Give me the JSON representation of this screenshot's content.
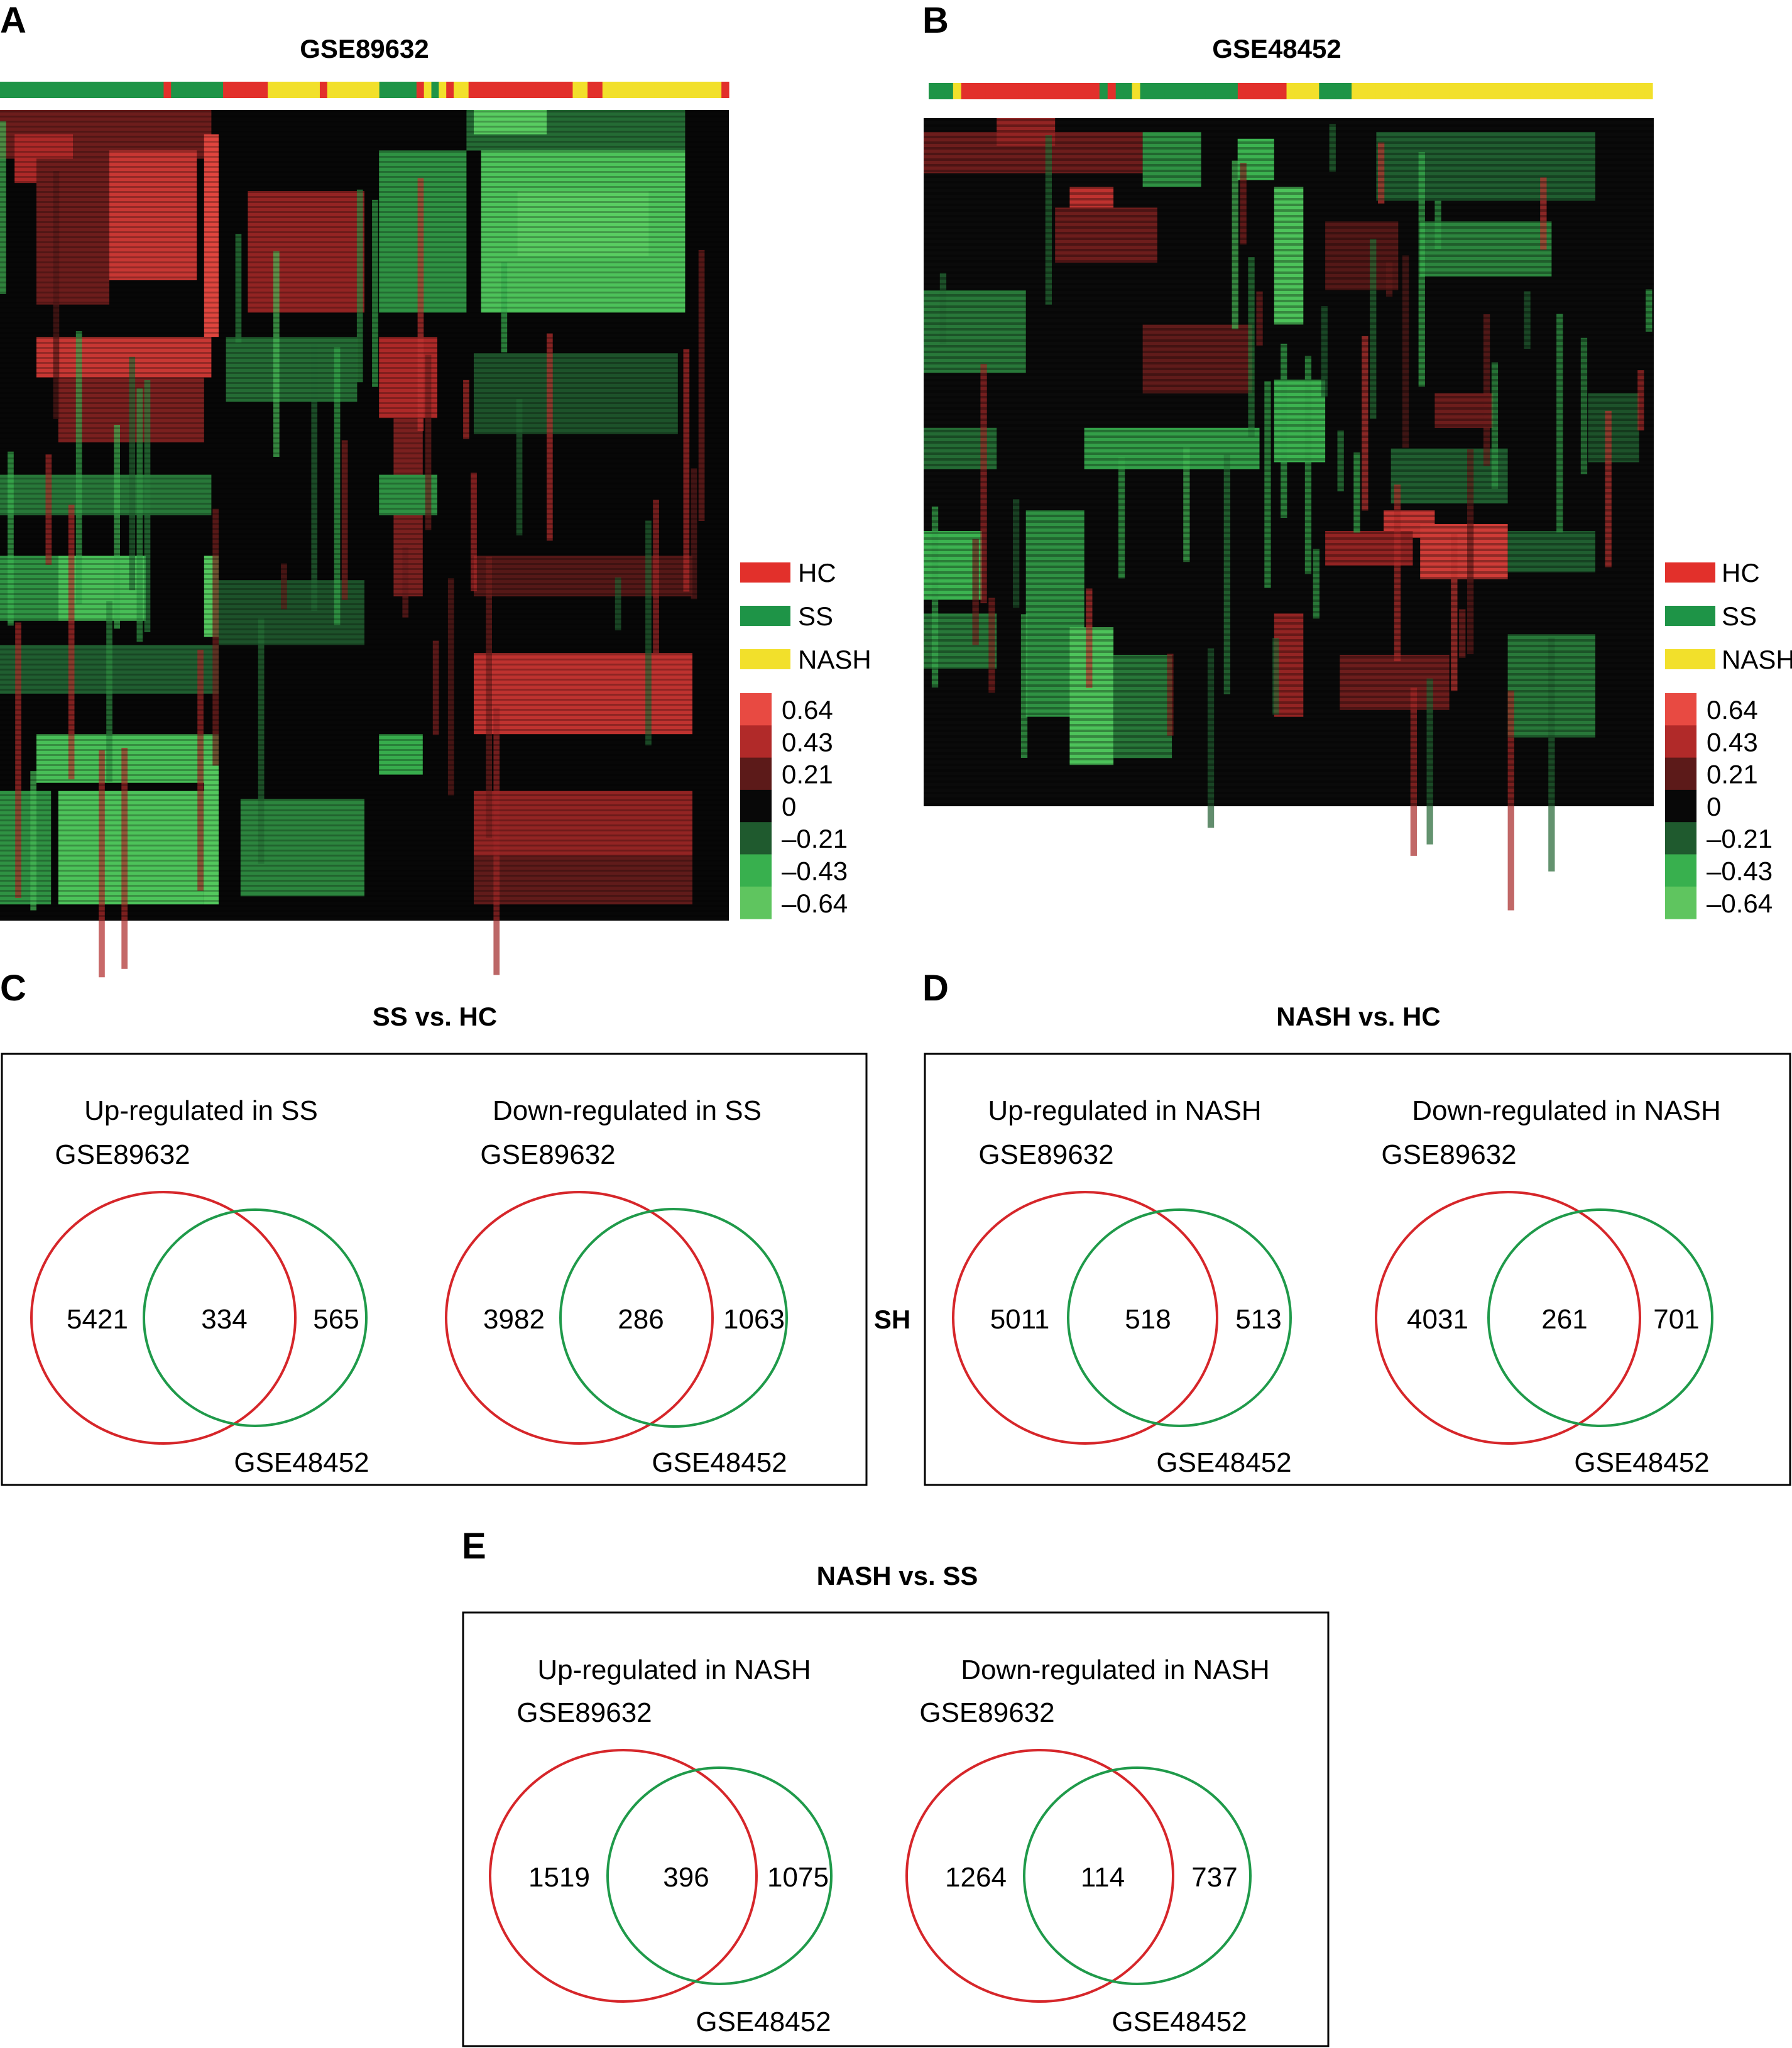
{
  "colors": {
    "hc": "#e2302b",
    "ss": "#1e9447",
    "nash": "#f2e02b",
    "venn_red": "#d6262a",
    "venn_green": "#1f9a4a",
    "scale": [
      "#e84a42",
      "#b12a29",
      "#5c1a19",
      "#080808",
      "#1f5a2e",
      "#38b04e",
      "#5fc55f"
    ]
  },
  "heatmaps": [
    {
      "letter": "A",
      "title": "GSE89632",
      "sample_groups": [
        "SS",
        "SS",
        "SS",
        "SS",
        "SS",
        "SS",
        "SS",
        "SS",
        "SS",
        "SS",
        "SS",
        "SS",
        "SS",
        "SS",
        "SS",
        "SS",
        "SS",
        "SS",
        "SS",
        "SS",
        "SS",
        "SS",
        "HC",
        "SS",
        "SS",
        "SS",
        "SS",
        "SS",
        "SS",
        "SS",
        "HC",
        "HC",
        "HC",
        "HC",
        "HC",
        "HC",
        "NASH",
        "NASH",
        "NASH",
        "NASH",
        "NASH",
        "NASH",
        "NASH",
        "HC",
        "NASH",
        "NASH",
        "NASH",
        "NASH",
        "NASH",
        "NASH",
        "NASH",
        "SS",
        "SS",
        "SS",
        "SS",
        "SS",
        "HC",
        "NASH",
        "SS",
        "NASH",
        "HC",
        "NASH",
        "NASH",
        "HC",
        "HC",
        "HC",
        "HC",
        "HC",
        "HC",
        "HC",
        "HC",
        "HC",
        "HC",
        "HC",
        "HC",
        "HC",
        "HC",
        "NASH",
        "NASH",
        "HC",
        "HC",
        "NASH",
        "NASH",
        "NASH",
        "NASH",
        "NASH",
        "NASH",
        "NASH",
        "NASH",
        "NASH",
        "NASH",
        "NASH",
        "NASH",
        "NASH",
        "NASH",
        "NASH",
        "NASH",
        "HC"
      ],
      "legend": [
        {
          "group": "HC",
          "label": "HC"
        },
        {
          "group": "SS",
          "label": "SS"
        },
        {
          "group": "NASH",
          "label": "NASH"
        }
      ],
      "scale_values": [
        "0.64",
        "0.43",
        "0.21",
        "0",
        "–0.21",
        "–0.43",
        "–0.64"
      ]
    },
    {
      "letter": "B",
      "title": "GSE48452",
      "sample_groups": [
        "SS",
        "SS",
        "SS",
        "NASH",
        "HC",
        "HC",
        "HC",
        "HC",
        "HC",
        "HC",
        "HC",
        "HC",
        "HC",
        "HC",
        "HC",
        "HC",
        "HC",
        "HC",
        "HC",
        "HC",
        "HC",
        "SS",
        "HC",
        "SS",
        "SS",
        "NASH",
        "SS",
        "SS",
        "SS",
        "SS",
        "SS",
        "SS",
        "SS",
        "SS",
        "SS",
        "SS",
        "SS",
        "SS",
        "HC",
        "HC",
        "HC",
        "HC",
        "HC",
        "HC",
        "NASH",
        "NASH",
        "NASH",
        "NASH",
        "SS",
        "SS",
        "SS",
        "SS",
        "NASH",
        "NASH",
        "NASH",
        "NASH",
        "NASH",
        "NASH",
        "NASH",
        "NASH",
        "NASH",
        "NASH",
        "NASH",
        "NASH",
        "NASH",
        "NASH",
        "NASH",
        "NASH",
        "NASH",
        "NASH",
        "NASH",
        "NASH",
        "NASH",
        "NASH",
        "NASH",
        "NASH",
        "NASH",
        "NASH",
        "NASH",
        "NASH",
        "NASH",
        "NASH",
        "NASH",
        "NASH",
        "NASH",
        "NASH",
        "NASH",
        "NASH",
        "NASH"
      ],
      "legend": [
        {
          "group": "HC",
          "label": "HC"
        },
        {
          "group": "SS",
          "label": "SS"
        },
        {
          "group": "NASH",
          "label": "NASH"
        }
      ],
      "scale_values": [
        "0.64",
        "0.43",
        "0.21",
        "0",
        "–0.21",
        "–0.43",
        "–0.64"
      ]
    }
  ],
  "venn_panels": [
    {
      "letter": "C",
      "title": "SS vs. HC",
      "diagrams": [
        {
          "heading": "Up-regulated in SS",
          "top_label": "GSE89632",
          "bottom_label": "GSE48452",
          "left": "5421",
          "both": "334",
          "right": "565"
        },
        {
          "heading": "Down-regulated in SS",
          "top_label": "GSE89632",
          "bottom_label": "GSE48452",
          "left": "3982",
          "both": "286",
          "right": "1063"
        }
      ]
    },
    {
      "letter": "D",
      "title": "NASH vs. HC",
      "diagrams": [
        {
          "heading": "Up-regulated in NASH",
          "top_label": "GSE89632",
          "bottom_label": "GSE48452",
          "left": "5011",
          "both": "518",
          "right": "513"
        },
        {
          "heading": "Down-regulated in NASH",
          "top_label": "GSE89632",
          "bottom_label": "GSE48452",
          "left": "4031",
          "both": "261",
          "right": "701"
        }
      ]
    },
    {
      "letter": "E",
      "title": "NASH vs. SS",
      "diagrams": [
        {
          "heading": "Up-regulated in NASH",
          "top_label": "GSE89632",
          "bottom_label": "GSE48452",
          "left": "1519",
          "both": "396",
          "right": "1075"
        },
        {
          "heading": "Down-regulated in NASH",
          "top_label": "GSE89632",
          "bottom_label": "GSE48452",
          "left": "1264",
          "both": "114",
          "right": "737"
        }
      ]
    }
  ],
  "stray_label": "SH"
}
